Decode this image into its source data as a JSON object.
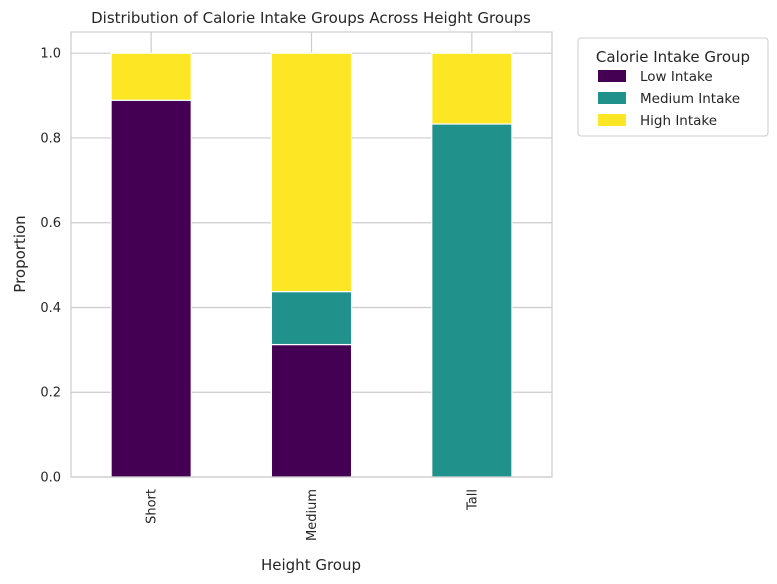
{
  "chart_data": {
    "type": "bar",
    "stacked": true,
    "title": "Distribution of Calorie Intake Groups Across Height Groups",
    "xlabel": "Height Group",
    "ylabel": "Proportion",
    "ylim": [
      0,
      1.05
    ],
    "yticks": [
      "0.0",
      "0.2",
      "0.4",
      "0.6",
      "0.8",
      "1.0"
    ],
    "categories": [
      "Short",
      "Medium",
      "Tall"
    ],
    "grid": true,
    "legend": {
      "title": "Calorie Intake Group",
      "placement": "outside-top-right"
    },
    "series": [
      {
        "name": "Low Intake",
        "color": "#440154",
        "values": [
          0.889,
          0.3125,
          0.0
        ]
      },
      {
        "name": "Medium Intake",
        "color": "#21918c",
        "values": [
          0.0,
          0.125,
          0.833
        ]
      },
      {
        "name": "High Intake",
        "color": "#fde725",
        "values": [
          0.111,
          0.5625,
          0.167
        ]
      }
    ]
  }
}
